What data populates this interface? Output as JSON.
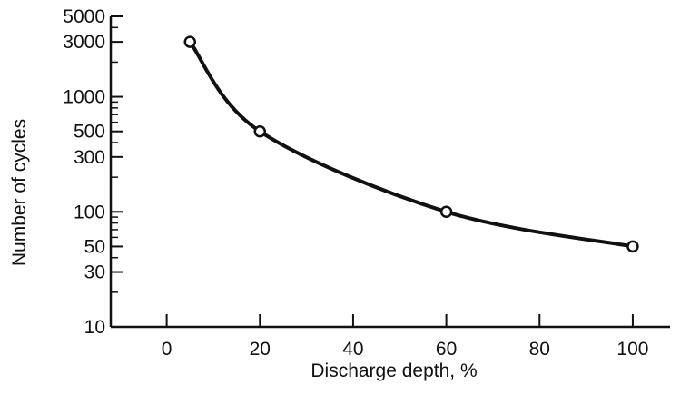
{
  "chart_data": {
    "type": "line",
    "title": "",
    "xlabel": "Discharge depth, %",
    "ylabel": "Number of cycles",
    "x_scale": "linear",
    "y_scale": "log",
    "xlim": [
      -12,
      108
    ],
    "ylim": [
      10,
      5000
    ],
    "x_ticks": [
      0,
      20,
      40,
      60,
      80,
      100
    ],
    "x_tick_labels": [
      "0",
      "20",
      "40",
      "60",
      "80",
      "100"
    ],
    "y_ticks": [
      10,
      30,
      50,
      100,
      300,
      500,
      1000,
      3000,
      5000
    ],
    "y_tick_labels": [
      "10",
      "30",
      "50",
      "100",
      "300",
      "500",
      "1000",
      "3000",
      "5000"
    ],
    "grid": false,
    "legend": "none",
    "line_color": "#111111",
    "marker": "open-circle",
    "series": [
      {
        "points": [
          {
            "x": 5,
            "y": 3000
          },
          {
            "x": 20,
            "y": 500
          },
          {
            "x": 60,
            "y": 100
          },
          {
            "x": 100,
            "y": 50
          }
        ]
      }
    ]
  }
}
